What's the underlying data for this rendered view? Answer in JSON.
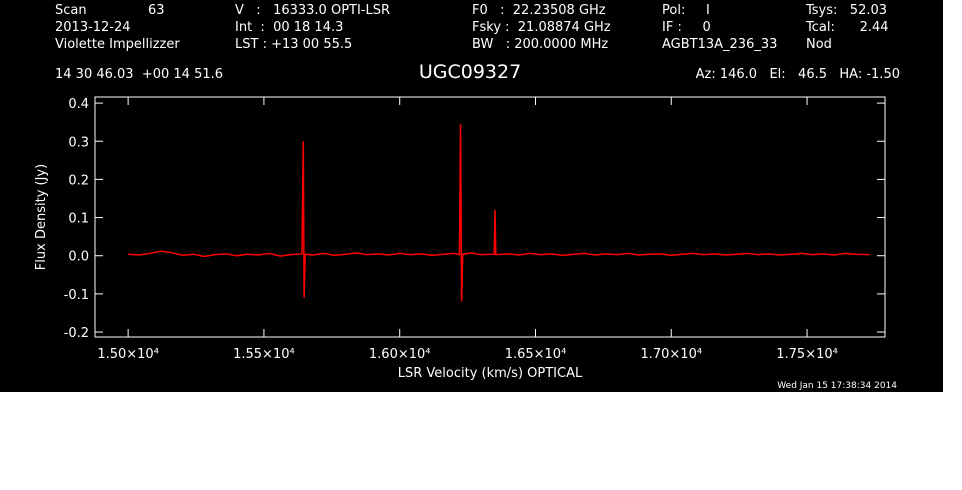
{
  "chart_data": {
    "type": "line",
    "title": "UGC09327",
    "header": [
      "Scan",
      "63",
      "V   :   16333.0 OPTI-LSR",
      "F0   :  22.23508 GHz",
      "Pol:     I",
      "Tsys:   52.03",
      "2013-12-24",
      "Int  :  00 18 14.3",
      "Fsky :  21.08874 GHz",
      "IF :     0",
      "Tcal:      2.44",
      "Violette Impellizzer",
      "LST : +13 00 55.5",
      "BW   : 200.0000 MHz",
      "AGBT13A_236_33",
      "Nod",
      "14 30 46.03  +00 14 51.6",
      "Az: 146.0   El:   46.5   HA: -1.50"
    ],
    "footer": "Wed Jan 15 17:38:34 2014",
    "xlabel": "LSR Velocity (km/s) OPTICAL",
    "ylabel": "Flux Density (Jy)",
    "xlim": [
      14878,
      17787
    ],
    "ylim": [
      -0.213,
      0.416
    ],
    "xticks": [
      {
        "value": 15000,
        "label": "1.50×10⁴"
      },
      {
        "value": 15500,
        "label": "1.55×10⁴"
      },
      {
        "value": 16000,
        "label": "1.60×10⁴"
      },
      {
        "value": 16500,
        "label": "1.65×10⁴"
      },
      {
        "value": 17000,
        "label": "1.70×10⁴"
      },
      {
        "value": 17500,
        "label": "1.75×10⁴"
      }
    ],
    "yticks": [
      -0.2,
      -0.1,
      {
        "value": 0,
        "label": "0.0"
      },
      0.1,
      0.2,
      0.3,
      0.4
    ],
    "x": [
      15000,
      15040,
      15080,
      15120,
      15160,
      15200,
      15240,
      15280,
      15320,
      15360,
      15400,
      15440,
      15480,
      15520,
      15560,
      15600,
      15640,
      15645,
      15648,
      15652,
      15680,
      15720,
      15760,
      15800,
      15840,
      15880,
      15920,
      15960,
      16000,
      16040,
      16080,
      16120,
      16160,
      16200,
      16220,
      16224,
      16228,
      16232,
      16260,
      16300,
      16348,
      16351,
      16354,
      16400,
      16440,
      16480,
      16520,
      16560,
      16600,
      16640,
      16680,
      16720,
      16760,
      16800,
      16840,
      16880,
      16920,
      16960,
      17000,
      17040,
      17080,
      17120,
      17160,
      17200,
      17240,
      17280,
      17320,
      17360,
      17400,
      17440,
      17480,
      17520,
      17560,
      17600,
      17640,
      17680,
      17730
    ],
    "series": [
      {
        "color": "#ff0000",
        "values": [
          0.004,
          0.002,
          0.006,
          0.012,
          0.008,
          0.001,
          0.004,
          -0.002,
          0.003,
          0.005,
          0.0,
          0.004,
          0.002,
          0.006,
          -0.001,
          0.003,
          0.005,
          0.3,
          -0.11,
          0.004,
          0.002,
          0.006,
          0.001,
          0.004,
          0.007,
          0.003,
          0.005,
          0.002,
          0.006,
          0.003,
          0.005,
          0.001,
          0.004,
          0.006,
          0.003,
          0.345,
          -0.12,
          0.004,
          0.007,
          0.003,
          0.004,
          0.12,
          0.003,
          0.005,
          0.002,
          0.006,
          0.003,
          0.005,
          0.001,
          0.004,
          0.006,
          0.002,
          0.005,
          0.003,
          0.006,
          0.002,
          0.004,
          0.005,
          0.001,
          0.004,
          0.006,
          0.003,
          0.005,
          0.002,
          0.004,
          0.006,
          0.003,
          0.005,
          0.002,
          0.004,
          0.006,
          0.003,
          0.005,
          0.002,
          0.006,
          0.004,
          0.003
        ]
      }
    ]
  }
}
